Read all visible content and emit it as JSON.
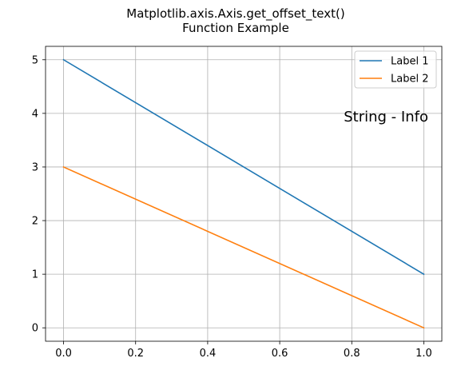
{
  "chart_data": {
    "type": "line",
    "title_lines": [
      "Matplotlib.axis.Axis.get_offset_text()",
      "Function Example"
    ],
    "xlabel": "",
    "ylabel": "",
    "xlim": [
      -0.05,
      1.05
    ],
    "ylim": [
      -0.25,
      5.25
    ],
    "xticks": [
      0.0,
      0.2,
      0.4,
      0.6,
      0.8,
      1.0
    ],
    "xtick_labels": [
      "0.0",
      "0.2",
      "0.4",
      "0.6",
      "0.8",
      "1.0"
    ],
    "yticks": [
      0,
      1,
      2,
      3,
      4,
      5
    ],
    "ytick_labels": [
      "0",
      "1",
      "2",
      "3",
      "4",
      "5"
    ],
    "grid": true,
    "legend_position": "top-right",
    "series": [
      {
        "name": "Label 1",
        "color": "#1f77b4",
        "x": [
          0.0,
          1.0
        ],
        "y": [
          5,
          1
        ]
      },
      {
        "name": "Label 2",
        "color": "#ff7f0e",
        "x": [
          0.0,
          1.0
        ],
        "y": [
          3,
          0
        ]
      }
    ],
    "annotation": {
      "text": "String - Info",
      "x": 1.03,
      "y": 3.85
    }
  }
}
